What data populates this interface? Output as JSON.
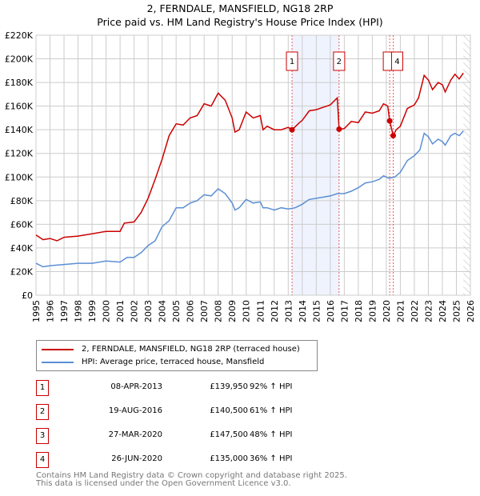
{
  "chart_data": {
    "type": "line",
    "title": "2, FERNDALE, MANSFIELD, NG18 2RP",
    "subtitle": "Price paid vs. HM Land Registry's House Price Index (HPI)",
    "ylim": [
      0,
      220000
    ],
    "xlim": [
      1995,
      2026
    ],
    "yticks": [
      "£0",
      "£20K",
      "£40K",
      "£60K",
      "£80K",
      "£100K",
      "£120K",
      "£140K",
      "£160K",
      "£180K",
      "£200K",
      "£220K"
    ],
    "xticks": [
      "1995",
      "1996",
      "1997",
      "1998",
      "1999",
      "2000",
      "2001",
      "2002",
      "2003",
      "2004",
      "2005",
      "2006",
      "2007",
      "2008",
      "2009",
      "2010",
      "2011",
      "2012",
      "2013",
      "2014",
      "2015",
      "2016",
      "2017",
      "2018",
      "2019",
      "2020",
      "2021",
      "2022",
      "2023",
      "2024",
      "2025",
      "2026"
    ],
    "grid": true,
    "series": [
      {
        "name": "2, FERNDALE, MANSFIELD, NG18 2RP (terraced house)",
        "color": "#cc0000",
        "x": [
          1995,
          1995.5,
          1996,
          1996.5,
          1997,
          1998,
          1999,
          2000,
          2001,
          2001.3,
          2002,
          2002.5,
          2003,
          2003.5,
          2004,
          2004.5,
          2005,
          2005.5,
          2006,
          2006.5,
          2007,
          2007.5,
          2008,
          2008.5,
          2009,
          2009.2,
          2009.5,
          2010,
          2010.5,
          2011,
          2011.2,
          2011.5,
          2012,
          2012.5,
          2013,
          2013.27,
          2013.8,
          2014,
          2014.5,
          2015,
          2015.5,
          2016,
          2016.5,
          2016.63,
          2017,
          2017.5,
          2018,
          2018.5,
          2019,
          2019.5,
          2019.8,
          2020.1,
          2020.24,
          2020.49,
          2020.7,
          2021,
          2021.5,
          2022,
          2022.3,
          2022.7,
          2023,
          2023.3,
          2023.7,
          2024,
          2024.2,
          2024.6,
          2024.9,
          2025.2,
          2025.5
        ],
        "y": [
          51000,
          47000,
          48000,
          46000,
          49000,
          50000,
          52000,
          54000,
          54000,
          61000,
          62000,
          70000,
          82000,
          98000,
          115000,
          135000,
          145000,
          144000,
          150000,
          152000,
          162000,
          160000,
          171000,
          165000,
          150000,
          138000,
          140000,
          155000,
          150000,
          152000,
          140000,
          143000,
          140000,
          140000,
          142000,
          139950,
          146000,
          148000,
          156000,
          157000,
          159000,
          161000,
          167000,
          140500,
          141000,
          147000,
          146000,
          155000,
          154000,
          156000,
          162000,
          160000,
          147500,
          135000,
          140000,
          143000,
          158000,
          161000,
          167000,
          186000,
          182000,
          174000,
          180000,
          178000,
          172000,
          182000,
          187000,
          183000,
          188000
        ]
      },
      {
        "name": "HPI: Average price, terraced house, Mansfield",
        "color": "#5b8fd4",
        "x": [
          1995,
          1995.5,
          1996,
          1997,
          1998,
          1999,
          2000,
          2001,
          2001.5,
          2002,
          2002.5,
          2003,
          2003.5,
          2004,
          2004.5,
          2005,
          2005.5,
          2006,
          2006.5,
          2007,
          2007.5,
          2008,
          2008.5,
          2009,
          2009.2,
          2009.5,
          2010,
          2010.5,
          2011,
          2011.2,
          2011.5,
          2012,
          2012.5,
          2013,
          2013.5,
          2014,
          2014.5,
          2015,
          2015.5,
          2016,
          2016.5,
          2017,
          2017.5,
          2018,
          2018.5,
          2019,
          2019.5,
          2019.8,
          2020.2,
          2020.6,
          2021,
          2021.5,
          2022,
          2022.4,
          2022.7,
          2023,
          2023.3,
          2023.7,
          2024,
          2024.2,
          2024.6,
          2024.9,
          2025.2,
          2025.5
        ],
        "y": [
          27000,
          24000,
          25000,
          26000,
          27000,
          27000,
          29000,
          28000,
          32000,
          32000,
          36000,
          42000,
          46000,
          58000,
          63000,
          74000,
          74000,
          78000,
          80000,
          85000,
          84000,
          90000,
          86000,
          78000,
          72000,
          74000,
          81000,
          78000,
          79000,
          74000,
          74000,
          72000,
          74000,
          73000,
          74000,
          77000,
          81000,
          82000,
          83000,
          84000,
          86000,
          86000,
          88000,
          91000,
          95000,
          96000,
          98000,
          101000,
          99000,
          100000,
          104000,
          114000,
          118000,
          123000,
          137000,
          134000,
          128000,
          132000,
          130000,
          127000,
          135000,
          137000,
          135000,
          139000
        ]
      }
    ],
    "sales": [
      {
        "label": "1",
        "date": "08-APR-2013",
        "x": 2013.27,
        "price": "£139,950",
        "value": 139950,
        "hpi": "92% ↑ HPI"
      },
      {
        "label": "2",
        "date": "19-AUG-2016",
        "x": 2016.63,
        "price": "£140,500",
        "value": 140500,
        "hpi": "61% ↑ HPI"
      },
      {
        "label": "3",
        "date": "27-MAR-2020",
        "x": 2020.24,
        "price": "£147,500",
        "value": 147500,
        "hpi": "48% ↑ HPI"
      },
      {
        "label": "4",
        "date": "26-JUN-2020",
        "x": 2020.49,
        "price": "£135,000",
        "value": 135000,
        "hpi": "36% ↑ HPI"
      }
    ],
    "shaded_range": [
      2013.27,
      2016.63
    ],
    "forecast_from": 2025.5
  },
  "footer": {
    "line1": "Contains HM Land Registry data © Crown copyright and database right 2025.",
    "line2": "This data is licensed under the Open Government Licence v3.0."
  }
}
